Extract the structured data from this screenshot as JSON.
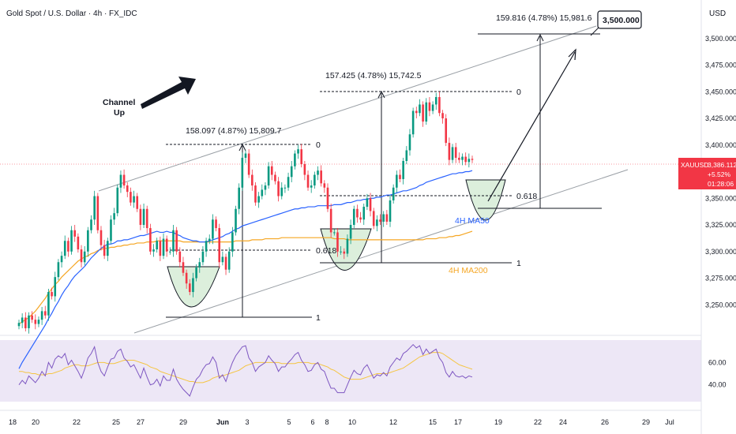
{
  "header": {
    "symbol_title": "Gold Spot / U.S. Dollar · 4h · FX_IDC",
    "currency": "USD"
  },
  "price_badge": {
    "symbol": "XAUUSD",
    "price": "3,386.112",
    "change": "+5.52%",
    "countdown": "01:28:06",
    "color": "#f23645"
  },
  "colors": {
    "up": "#089981",
    "down": "#f23645",
    "ma50": "#2962ff",
    "ma200": "#f5a623",
    "rsi": "#7e57c2",
    "rsi_ma": "#f5c542",
    "rsi_band": "#ede7f6"
  },
  "annotations": {
    "channel_label_1": "Channel",
    "channel_label_2": "Up",
    "measure_1": "158.097 (4.87%) 15,809.7",
    "measure_2": "157.425 (4.78%) 15,742.5",
    "measure_3": "159.816 (4.78%) 15,981.6",
    "target": "3,500.000",
    "fib_0": "0",
    "fib_0618": "0.618",
    "fib_1": "1",
    "ma50_label": "4H MA50",
    "ma200_label": "4H MA200"
  },
  "chart_data": {
    "type": "candlestick",
    "y_axis": {
      "min": 3225,
      "max": 3525,
      "ticks": [
        "3,250.000",
        "3,275.000",
        "3,300.000",
        "3,325.000",
        "3,350.000",
        "3,375.000",
        "3,400.000",
        "3,425.000",
        "3,450.000",
        "3,475.000",
        "3,500.000"
      ]
    },
    "x_labels": [
      "18",
      "20",
      "22",
      "25",
      "27",
      "29",
      "Jun",
      "3",
      "5",
      "6",
      "8",
      "10",
      "12",
      "15",
      "17",
      "19",
      "22",
      "24",
      "26",
      "29",
      "Jul"
    ],
    "rsi": {
      "ticks": [
        "60.00",
        "40.00"
      ],
      "ymin": 25,
      "ymax": 80
    },
    "closes": [
      3233,
      3238,
      3228,
      3240,
      3236,
      3232,
      3236,
      3244,
      3240,
      3262,
      3258,
      3276,
      3290,
      3296,
      3310,
      3300,
      3320,
      3314,
      3302,
      3290,
      3300,
      3320,
      3330,
      3352,
      3320,
      3306,
      3296,
      3310,
      3330,
      3336,
      3360,
      3372,
      3362,
      3356,
      3346,
      3352,
      3340,
      3325,
      3340,
      3322,
      3300,
      3302,
      3310,
      3296,
      3312,
      3300,
      3300,
      3320,
      3300,
      3290,
      3280,
      3270,
      3262,
      3275,
      3285,
      3290,
      3300,
      3310,
      3312,
      3330,
      3322,
      3290,
      3295,
      3283,
      3300,
      3318,
      3340,
      3360,
      3388,
      3392,
      3372,
      3362,
      3346,
      3352,
      3358,
      3362,
      3380,
      3372,
      3366,
      3352,
      3360,
      3360,
      3370,
      3380,
      3392,
      3396,
      3382,
      3372,
      3360,
      3362,
      3372,
      3376,
      3364,
      3360,
      3340,
      3318,
      3318,
      3300,
      3300,
      3298,
      3312,
      3325,
      3340,
      3332,
      3330,
      3342,
      3350,
      3338,
      3324,
      3330,
      3328,
      3335,
      3328,
      3348,
      3360,
      3372,
      3368,
      3385,
      3395,
      3410,
      3432,
      3430,
      3438,
      3422,
      3440,
      3432,
      3438,
      3445,
      3430,
      3425,
      3402,
      3386,
      3398,
      3388,
      3386,
      3389,
      3384,
      3387,
      3386
    ],
    "ma50": [
      3190,
      3196,
      3201,
      3206,
      3211,
      3216,
      3221,
      3226,
      3231,
      3237,
      3242,
      3248,
      3253,
      3259,
      3264,
      3268,
      3273,
      3277,
      3280,
      3283,
      3286,
      3290,
      3294,
      3297,
      3300,
      3303,
      3305,
      3307,
      3307,
      3308,
      3310,
      3310,
      3311,
      3311,
      3312,
      3313,
      3314,
      3315,
      3315,
      3316,
      3317,
      3318,
      3319,
      3318,
      3318,
      3319,
      3318,
      3318,
      3316,
      3315,
      3313,
      3312,
      3311,
      3310,
      3310,
      3309,
      3309,
      3309,
      3310,
      3311,
      3312,
      3313,
      3314,
      3316,
      3317,
      3319,
      3321,
      3322,
      3324,
      3325,
      3326,
      3327,
      3328,
      3329,
      3330,
      3331,
      3332,
      3333,
      3334,
      3335,
      3336,
      3337,
      3338,
      3339,
      3340,
      3340,
      3341,
      3341,
      3342,
      3342,
      3342,
      3343,
      3343,
      3343,
      3343,
      3343,
      3344,
      3344,
      3344,
      3345,
      3346,
      3346,
      3347,
      3348,
      3348,
      3349,
      3349,
      3350,
      3350,
      3351,
      3351,
      3352,
      3353,
      3353,
      3354,
      3355,
      3356,
      3357,
      3357,
      3358,
      3359,
      3360,
      3362,
      3363,
      3365,
      3366,
      3367,
      3368,
      3369,
      3370,
      3371,
      3372,
      3373,
      3373,
      3374,
      3374,
      3375,
      3375,
      3376
    ],
    "ma200": [
      3232,
      3234,
      3236,
      3238,
      3241,
      3244,
      3248,
      3252,
      3256,
      3261,
      3265,
      3269,
      3272,
      3276,
      3279,
      3282,
      3285,
      3288,
      3291,
      3293,
      3295,
      3296,
      3298,
      3299,
      3301,
      3302,
      3303,
      3303,
      3304,
      3304,
      3305,
      3305,
      3306,
      3306,
      3307,
      3307,
      3308,
      3308,
      3308,
      3309,
      3309,
      3309,
      3310,
      3310,
      3310,
      3310,
      3310,
      3310,
      3310,
      3310,
      3309,
      3309,
      3309,
      3309,
      3309,
      3309,
      3309,
      3309,
      3309,
      3309,
      3309,
      3309,
      3309,
      3309,
      3309,
      3309,
      3310,
      3310,
      3310,
      3310,
      3310,
      3311,
      3311,
      3311,
      3311,
      3312,
      3312,
      3312,
      3312,
      3312,
      3313,
      3313,
      3313,
      3313,
      3313,
      3313,
      3313,
      3313,
      3313,
      3313,
      3313,
      3313,
      3313,
      3313,
      3313,
      3313,
      3312,
      3312,
      3312,
      3312,
      3311,
      3311,
      3311,
      3311,
      3311,
      3311,
      3311,
      3311,
      3311,
      3311,
      3311,
      3311,
      3311,
      3311,
      3311,
      3311,
      3311,
      3311,
      3311,
      3311,
      3311,
      3311,
      3311,
      3311,
      3312,
      3312,
      3312,
      3312,
      3313,
      3313,
      3313,
      3314,
      3314,
      3315,
      3315,
      3316,
      3317,
      3318,
      3319
    ],
    "rsi_values": [
      40,
      44,
      41,
      48,
      45,
      42,
      46,
      52,
      48,
      60,
      55,
      63,
      66,
      64,
      68,
      58,
      62,
      57,
      52,
      46,
      54,
      64,
      68,
      74,
      60,
      52,
      48,
      56,
      63,
      64,
      70,
      72,
      64,
      61,
      56,
      58,
      52,
      46,
      55,
      47,
      40,
      41,
      45,
      39,
      48,
      44,
      44,
      54,
      45,
      40,
      36,
      33,
      30,
      38,
      45,
      48,
      54,
      58,
      59,
      65,
      60,
      46,
      49,
      43,
      52,
      60,
      66,
      70,
      74,
      75,
      64,
      60,
      52,
      56,
      58,
      60,
      66,
      62,
      59,
      52,
      56,
      56,
      60,
      63,
      67,
      69,
      62,
      58,
      52,
      53,
      58,
      60,
      54,
      52,
      44,
      37,
      37,
      33,
      33,
      33,
      40,
      47,
      53,
      50,
      49,
      55,
      58,
      52,
      46,
      49,
      48,
      51,
      48,
      56,
      60,
      64,
      62,
      68,
      70,
      73,
      76,
      73,
      75,
      67,
      72,
      68,
      70,
      72,
      64,
      60,
      51,
      47,
      52,
      48,
      47,
      48,
      46,
      48,
      47
    ],
    "rsi_ma": [
      52,
      52,
      51,
      51,
      50,
      50,
      49,
      49,
      49,
      50,
      50,
      51,
      52,
      53,
      55,
      56,
      57,
      58,
      58,
      57,
      57,
      57,
      58,
      59,
      60,
      60,
      60,
      59,
      59,
      59,
      60,
      61,
      62,
      62,
      62,
      62,
      61,
      60,
      59,
      58,
      56,
      55,
      54,
      52,
      51,
      50,
      49,
      48,
      47,
      46,
      45,
      44,
      43,
      43,
      42,
      42,
      42,
      43,
      44,
      46,
      47,
      48,
      48,
      49,
      50,
      51,
      52,
      53,
      55,
      57,
      58,
      59,
      60,
      60,
      60,
      60,
      60,
      60,
      60,
      60,
      59,
      59,
      59,
      59,
      59,
      60,
      60,
      60,
      60,
      59,
      59,
      59,
      58,
      57,
      56,
      54,
      53,
      51,
      49,
      47,
      46,
      45,
      45,
      45,
      45,
      46,
      47,
      48,
      49,
      50,
      50,
      50,
      50,
      51,
      52,
      53,
      54,
      55,
      57,
      59,
      61,
      63,
      65,
      66,
      67,
      68,
      69,
      69,
      69,
      68,
      66,
      64,
      62,
      60,
      58,
      57,
      56,
      55,
      54
    ]
  }
}
